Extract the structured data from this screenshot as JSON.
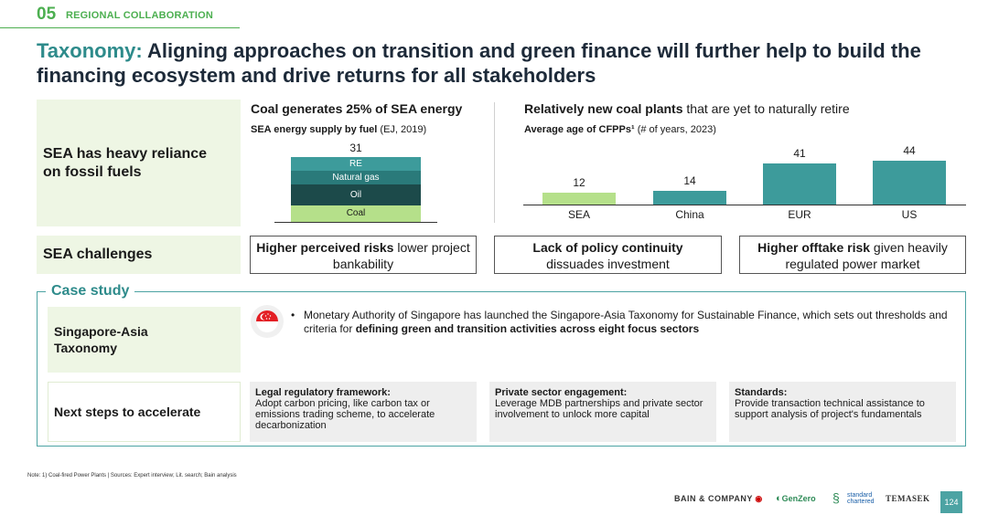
{
  "header": {
    "section_number": "05",
    "section_name": "REGIONAL COLLABORATION",
    "title_keyword": "Taxonomy:",
    "title_rest": " Aligning approaches on transition and green finance will further help to build the financing ecosystem and drive returns for all stakeholders"
  },
  "rows": {
    "reliance_label": "SEA has heavy reliance on fossil fuels",
    "challenges_label": "SEA challenges",
    "case_title": "Case study",
    "taxonomy_label": "Singapore-Asia Taxonomy",
    "next_steps_label": "Next steps to accelerate"
  },
  "coal": {
    "heading": "Coal generates 25% of SEA energy",
    "sub_bold": "SEA energy supply by fuel",
    "sub_normal": " (EJ, 2019)",
    "total": "31",
    "segments": [
      {
        "label": "RE",
        "color": "#3d9b9b"
      },
      {
        "label": "Natural gas",
        "color": "#2a7a7a"
      },
      {
        "label": "Oil",
        "color": "#1c4a4a"
      },
      {
        "label": "Coal",
        "color": "#b5e08a"
      }
    ]
  },
  "plants": {
    "heading_bold": "Relatively new coal plants",
    "heading_normal": " that are yet to naturally retire",
    "sub_bold": "Average age of CFPPs¹",
    "sub_normal": " (# of years, 2023)"
  },
  "chart_data": {
    "type": "bar",
    "title": "Average age of CFPPs¹",
    "categories": [
      "SEA",
      "China",
      "EUR",
      "US"
    ],
    "values": [
      12,
      14,
      41,
      44
    ],
    "ylim": [
      0,
      44
    ],
    "colors": [
      "#b5e08a",
      "#3d9b9b",
      "#3d9b9b",
      "#3d9b9b"
    ]
  },
  "challenges": [
    {
      "bold": "Higher perceived risks",
      "rest": " lower project bankability"
    },
    {
      "bold": "Lack of policy continuity",
      "rest": " dissuades investment"
    },
    {
      "bold": "Higher offtake risk",
      "rest": " given heavily regulated power market"
    }
  ],
  "taxonomy": {
    "text_normal": "Monetary Authority of Singapore has launched the Singapore-Asia Taxonomy for Sustainable Finance, which sets out thresholds and criteria for ",
    "text_bold": "defining green and transition activities across eight focus sectors",
    "icon": "singapore-flag-icon"
  },
  "next_steps": [
    {
      "title": "Legal regulatory framework:",
      "body": "Adopt carbon pricing, like carbon tax or emissions trading scheme, to accelerate decarbonization"
    },
    {
      "title": "Private sector engagement:",
      "body": "Leverage MDB partnerships and private sector involvement to unlock more capital"
    },
    {
      "title": "Standards:",
      "body": "Provide transaction technical assistance to support analysis of project's fundamentals"
    }
  ],
  "footer": {
    "note": "Note: 1) Coal-fired Power Plants | Sources: Expert interview; Lit. search; Bain analysis",
    "logo_bain": "BAIN & COMPANY",
    "logo_genzero": "GenZero",
    "logo_sc_1": "standard",
    "logo_sc_2": "chartered",
    "logo_temasek": "TEMASEK",
    "page": "124"
  },
  "colors": {
    "accent_green": "#4caf50",
    "teal": "#3d9b9b",
    "dark_teal": "#1c4a4a",
    "light_green": "#b5e08a",
    "label_bg": "#eef6e4"
  }
}
